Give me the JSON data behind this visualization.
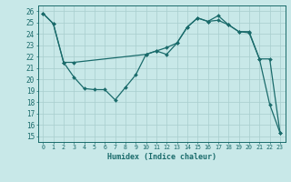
{
  "xlabel": "Humidex (Indice chaleur)",
  "bg_color": "#c8e8e8",
  "line_color": "#1a6b6b",
  "grid_color": "#a8cece",
  "xlim": [
    -0.5,
    23.5
  ],
  "ylim": [
    14.5,
    26.5
  ],
  "yticks": [
    15,
    16,
    17,
    18,
    19,
    20,
    21,
    22,
    23,
    24,
    25,
    26
  ],
  "xticks": [
    0,
    1,
    2,
    3,
    4,
    5,
    6,
    7,
    8,
    9,
    10,
    11,
    12,
    13,
    14,
    15,
    16,
    17,
    18,
    19,
    20,
    21,
    22,
    23
  ],
  "series1_x": [
    0,
    1,
    2,
    3,
    10,
    11,
    12,
    13,
    14,
    15,
    16,
    17,
    18,
    19,
    20,
    21,
    22,
    23
  ],
  "series1_y": [
    25.8,
    24.9,
    21.5,
    21.5,
    22.2,
    22.5,
    22.2,
    23.2,
    24.6,
    25.4,
    25.1,
    25.6,
    24.8,
    24.2,
    24.2,
    21.8,
    21.8,
    15.3
  ],
  "series2_x": [
    0,
    1,
    2,
    3,
    4,
    5,
    6,
    7,
    8,
    9,
    10,
    11,
    12,
    13,
    14,
    15,
    16,
    17,
    18,
    19,
    20,
    21,
    22,
    23
  ],
  "series2_y": [
    25.8,
    24.9,
    21.5,
    20.2,
    19.2,
    19.1,
    19.1,
    18.2,
    19.3,
    20.4,
    22.2,
    22.5,
    22.8,
    23.2,
    24.6,
    25.4,
    25.1,
    25.2,
    24.8,
    24.2,
    24.1,
    21.8,
    17.8,
    15.3
  ]
}
